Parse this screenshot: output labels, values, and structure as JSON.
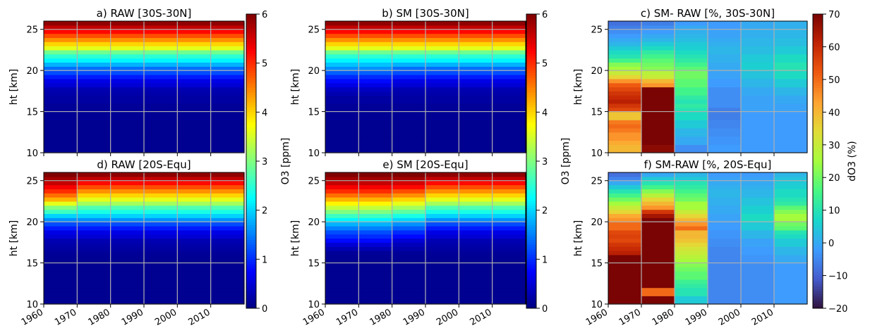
{
  "colors": {
    "grid": "#b0b0b0",
    "axis": "#000000"
  },
  "panels": [
    {
      "id": "a",
      "title": "a) RAW [30S-30N]",
      "ylabel": "ht [km]",
      "cmap": "jet",
      "vmin": 0,
      "vmax": 6,
      "xlim": [
        1960,
        2020
      ],
      "ylim": [
        10,
        26
      ],
      "xticks": [
        1960,
        1970,
        1980,
        1990,
        2000,
        2010
      ],
      "yticks": [
        10,
        15,
        20,
        25
      ],
      "xedges": [
        1960,
        1970,
        2020
      ],
      "columns": [
        [
          0.1,
          0.1,
          0.1,
          0.1,
          0.1,
          0.1,
          0.1,
          0.1,
          0.12,
          0.12,
          0.15,
          0.15,
          0.2,
          0.2,
          0.25,
          0.3,
          0.5,
          0.6,
          0.9,
          1.2,
          1.4,
          1.8,
          2.2,
          2.5,
          2.9,
          3.6,
          4.0,
          4.4,
          4.8,
          5.2,
          5.6,
          5.9
        ],
        [
          0.1,
          0.1,
          0.1,
          0.1,
          0.1,
          0.1,
          0.1,
          0.1,
          0.12,
          0.12,
          0.15,
          0.15,
          0.2,
          0.2,
          0.25,
          0.3,
          0.5,
          0.6,
          0.9,
          1.2,
          1.4,
          1.8,
          2.2,
          2.5,
          2.9,
          3.6,
          4.0,
          4.4,
          4.8,
          5.2,
          5.6,
          5.9
        ]
      ]
    },
    {
      "id": "b",
      "title": "b) SM [30S-30N]",
      "ylabel": "ht [km]",
      "cmap": "jet",
      "vmin": 0,
      "vmax": 6,
      "xlim": [
        1960,
        2020
      ],
      "ylim": [
        10,
        26
      ],
      "xticks": [
        1960,
        1970,
        1980,
        1990,
        2000,
        2010
      ],
      "yticks": [
        10,
        15,
        20,
        25
      ],
      "xedges": [
        1960,
        1970,
        1980,
        2020
      ],
      "columns": [
        [
          0.1,
          0.1,
          0.1,
          0.1,
          0.1,
          0.1,
          0.1,
          0.1,
          0.12,
          0.12,
          0.15,
          0.15,
          0.2,
          0.2,
          0.3,
          0.4,
          0.6,
          0.8,
          1.0,
          1.3,
          1.6,
          1.9,
          2.2,
          2.5,
          2.9,
          3.6,
          4.0,
          4.4,
          4.8,
          5.2,
          5.6,
          5.9
        ],
        [
          0.1,
          0.1,
          0.1,
          0.1,
          0.1,
          0.1,
          0.1,
          0.1,
          0.12,
          0.12,
          0.15,
          0.15,
          0.2,
          0.2,
          0.3,
          0.4,
          0.6,
          0.8,
          1.0,
          1.3,
          1.6,
          1.9,
          2.2,
          2.5,
          2.9,
          3.6,
          4.0,
          4.4,
          4.8,
          5.2,
          5.6,
          5.9
        ],
        [
          0.1,
          0.1,
          0.1,
          0.1,
          0.1,
          0.1,
          0.1,
          0.1,
          0.12,
          0.12,
          0.15,
          0.15,
          0.2,
          0.2,
          0.25,
          0.3,
          0.5,
          0.6,
          0.9,
          1.2,
          1.4,
          1.8,
          2.2,
          2.5,
          2.9,
          3.6,
          4.0,
          4.4,
          4.8,
          5.2,
          5.6,
          5.9
        ]
      ]
    },
    {
      "id": "c",
      "title": "c) SM- RAW [%, 30S-30N]",
      "ylabel": "ht [km]",
      "cmap": "turbo",
      "vmin": -20,
      "vmax": 70,
      "xlim": [
        1960,
        2020
      ],
      "ylim": [
        10,
        26
      ],
      "xticks": [
        1960,
        1970,
        1980,
        1990,
        2000,
        2010
      ],
      "yticks": [
        10,
        15,
        20,
        25
      ],
      "xedges": [
        1960,
        1970,
        1980,
        1990,
        2000,
        2010,
        2020
      ],
      "columns": [
        [
          40,
          40,
          42,
          45,
          45,
          48,
          50,
          48,
          38,
          38,
          55,
          58,
          62,
          60,
          58,
          55,
          52,
          45,
          35,
          30,
          25,
          22,
          15,
          10,
          8,
          5,
          2,
          0,
          -2,
          -4,
          -6,
          -8
        ],
        [
          68,
          68,
          70,
          70,
          70,
          70,
          70,
          70,
          70,
          70,
          70,
          70,
          70,
          70,
          70,
          70,
          45,
          40,
          30,
          28,
          22,
          20,
          18,
          15,
          12,
          8,
          5,
          2,
          0,
          -2,
          -4,
          -6
        ],
        [
          -4,
          -4,
          0,
          0,
          2,
          2,
          5,
          5,
          8,
          8,
          10,
          12,
          10,
          12,
          15,
          15,
          18,
          18,
          20,
          20,
          18,
          15,
          12,
          10,
          8,
          6,
          5,
          3,
          2,
          1,
          0,
          -2
        ],
        [
          -2,
          -2,
          -3,
          -3,
          -4,
          -4,
          -5,
          -5,
          -6,
          -6,
          -6,
          -4,
          -4,
          -4,
          -4,
          -4,
          -2,
          -2,
          -1,
          -1,
          0,
          0,
          1,
          1,
          2,
          2,
          1,
          0,
          -1,
          -1,
          -2,
          -2
        ],
        [
          -2,
          -2,
          -2,
          -2,
          -2,
          -2,
          -2,
          -2,
          -2,
          -2,
          -1,
          -1,
          -1,
          -1,
          0,
          0,
          2,
          2,
          4,
          4,
          6,
          6,
          5,
          5,
          3,
          3,
          2,
          2,
          1,
          1,
          0,
          0
        ],
        [
          -2,
          -2,
          -2,
          -2,
          -2,
          -2,
          -2,
          -2,
          -2,
          -2,
          -1,
          -1,
          0,
          0,
          2,
          2,
          5,
          5,
          8,
          8,
          10,
          10,
          8,
          8,
          5,
          5,
          3,
          3,
          2,
          2,
          1,
          1
        ]
      ]
    },
    {
      "id": "d",
      "title": "d) RAW [20S-Equ]",
      "ylabel": "ht [km]",
      "cmap": "jet",
      "vmin": 0,
      "vmax": 6,
      "xlim": [
        1960,
        2020
      ],
      "ylim": [
        10,
        26
      ],
      "xticks": [
        1960,
        1970,
        1980,
        1990,
        2000,
        2010
      ],
      "yticks": [
        10,
        15,
        20,
        25
      ],
      "xedges": [
        1960,
        1970,
        2020
      ],
      "columns": [
        [
          0.1,
          0.1,
          0.1,
          0.1,
          0.1,
          0.1,
          0.1,
          0.1,
          0.1,
          0.1,
          0.1,
          0.12,
          0.15,
          0.2,
          0.25,
          0.3,
          0.5,
          0.6,
          0.9,
          1.2,
          1.6,
          2.0,
          2.6,
          3.0,
          3.6,
          4.2,
          4.6,
          5.0,
          5.3,
          5.6,
          5.8,
          6.0
        ],
        [
          0.1,
          0.1,
          0.1,
          0.1,
          0.1,
          0.1,
          0.1,
          0.1,
          0.1,
          0.1,
          0.1,
          0.12,
          0.15,
          0.2,
          0.25,
          0.3,
          0.5,
          0.6,
          0.9,
          1.2,
          1.6,
          2.0,
          2.4,
          2.7,
          3.2,
          3.6,
          4.0,
          4.4,
          4.8,
          5.2,
          5.6,
          5.9
        ]
      ]
    },
    {
      "id": "e",
      "title": "e) SM [20S-Equ]",
      "ylabel": "ht [km]",
      "cmap": "jet",
      "vmin": 0,
      "vmax": 6,
      "xlim": [
        1960,
        2020
      ],
      "ylim": [
        10,
        26
      ],
      "xticks": [
        1960,
        1970,
        1980,
        1990,
        2000,
        2010
      ],
      "yticks": [
        10,
        15,
        20,
        25
      ],
      "xedges": [
        1960,
        1970,
        1980,
        1990,
        2020
      ],
      "columns": [
        [
          0.1,
          0.1,
          0.1,
          0.1,
          0.1,
          0.1,
          0.1,
          0.1,
          0.1,
          0.1,
          0.1,
          0.12,
          0.15,
          0.3,
          0.5,
          0.8,
          1.0,
          1.2,
          1.5,
          1.8,
          2.2,
          2.6,
          3.0,
          3.4,
          3.8,
          4.2,
          4.6,
          5.0,
          5.3,
          5.6,
          5.8,
          6.0
        ],
        [
          0.1,
          0.1,
          0.1,
          0.1,
          0.1,
          0.1,
          0.1,
          0.1,
          0.1,
          0.1,
          0.1,
          0.12,
          0.15,
          0.3,
          0.5,
          0.8,
          1.0,
          1.2,
          1.5,
          1.8,
          2.2,
          2.6,
          3.0,
          3.4,
          3.8,
          4.2,
          4.6,
          5.0,
          5.3,
          5.6,
          5.8,
          6.0
        ],
        [
          0.1,
          0.1,
          0.1,
          0.1,
          0.1,
          0.1,
          0.1,
          0.1,
          0.1,
          0.1,
          0.1,
          0.12,
          0.15,
          0.25,
          0.35,
          0.5,
          0.8,
          1.0,
          1.3,
          1.6,
          2.0,
          2.4,
          2.8,
          3.2,
          3.6,
          4.0,
          4.4,
          4.8,
          5.2,
          5.5,
          5.8,
          6.0
        ],
        [
          0.1,
          0.1,
          0.1,
          0.1,
          0.1,
          0.1,
          0.1,
          0.1,
          0.1,
          0.1,
          0.1,
          0.12,
          0.15,
          0.2,
          0.25,
          0.3,
          0.5,
          0.6,
          0.9,
          1.2,
          1.6,
          2.0,
          2.4,
          2.7,
          3.2,
          3.6,
          4.0,
          4.4,
          4.8,
          5.2,
          5.6,
          5.9
        ]
      ]
    },
    {
      "id": "f",
      "title": "f) SM-RAW [%, 20S-Equ]",
      "ylabel": "ht [km]",
      "cmap": "turbo",
      "vmin": -20,
      "vmax": 70,
      "xlim": [
        1960,
        2020
      ],
      "ylim": [
        10,
        26
      ],
      "xticks": [
        1960,
        1970,
        1980,
        1990,
        2000,
        2010
      ],
      "yticks": [
        10,
        15,
        20,
        25
      ],
      "xedges": [
        1960,
        1970,
        1980,
        1990,
        2000,
        2010,
        2020
      ],
      "columns": [
        [
          70,
          70,
          70,
          70,
          70,
          70,
          70,
          70,
          70,
          70,
          70,
          70,
          62,
          60,
          58,
          55,
          56,
          55,
          50,
          50,
          45,
          42,
          35,
          30,
          25,
          20,
          15,
          10,
          5,
          0,
          -5,
          -8
        ],
        [
          70,
          70,
          50,
          50,
          70,
          70,
          70,
          70,
          70,
          70,
          70,
          70,
          70,
          70,
          70,
          70,
          70,
          70,
          70,
          70,
          70,
          65,
          58,
          45,
          40,
          35,
          28,
          22,
          15,
          10,
          5,
          0
        ],
        [
          5,
          5,
          10,
          10,
          12,
          14,
          18,
          18,
          20,
          22,
          25,
          28,
          30,
          32,
          35,
          38,
          40,
          40,
          50,
          45,
          40,
          35,
          30,
          25,
          25,
          20,
          18,
          15,
          12,
          10,
          5,
          2
        ],
        [
          -5,
          -5,
          -5,
          -5,
          -5,
          -5,
          -5,
          -5,
          -5,
          -5,
          -5,
          -5,
          -5,
          -5,
          -4,
          -4,
          -3,
          -3,
          -2,
          -2,
          -1,
          -1,
          0,
          0,
          1,
          1,
          2,
          2,
          1,
          0,
          -1,
          -2
        ],
        [
          -4,
          -4,
          -4,
          -4,
          -4,
          -4,
          -4,
          -4,
          -4,
          -4,
          -3,
          -3,
          -2,
          -2,
          -1,
          -1,
          2,
          2,
          5,
          5,
          8,
          8,
          6,
          6,
          4,
          4,
          2,
          2,
          1,
          0,
          -1,
          -2
        ],
        [
          -2,
          -2,
          -2,
          -2,
          -2,
          -2,
          -2,
          -2,
          -2,
          -2,
          0,
          0,
          2,
          2,
          5,
          5,
          8,
          10,
          18,
          20,
          25,
          25,
          22,
          18,
          12,
          10,
          8,
          8,
          6,
          5,
          4,
          2
        ]
      ]
    }
  ],
  "colorbars": [
    {
      "id": "cb1",
      "cmap": "jet",
      "label": "O3 [ppm]",
      "vmin": 0,
      "vmax": 6,
      "ticks": [
        0,
        1,
        2,
        3,
        4,
        5,
        6
      ]
    },
    {
      "id": "cb2",
      "cmap": "turbo",
      "label": "dO3 (%)",
      "vmin": -20,
      "vmax": 70,
      "ticks": [
        -20,
        -10,
        0,
        10,
        20,
        30,
        40,
        50,
        60,
        70
      ]
    }
  ],
  "chart_data": [
    {
      "type": "heatmap",
      "title": "a) RAW [30S-30N]",
      "ylabel": "ht [km]",
      "xlim": [
        1960,
        2020
      ],
      "ylim": [
        10,
        26
      ],
      "colorbar": "O3 [ppm]"
    },
    {
      "type": "heatmap",
      "title": "b) SM [30S-30N]",
      "ylabel": "ht [km]",
      "xlim": [
        1960,
        2020
      ],
      "ylim": [
        10,
        26
      ],
      "colorbar": "O3 [ppm]"
    },
    {
      "type": "heatmap",
      "title": "c) SM- RAW [%, 30S-30N]",
      "ylabel": "ht [km]",
      "xlim": [
        1960,
        2020
      ],
      "ylim": [
        10,
        26
      ],
      "colorbar": "dO3 (%)"
    },
    {
      "type": "heatmap",
      "title": "d) RAW [20S-Equ]",
      "ylabel": "ht [km]",
      "xlim": [
        1960,
        2020
      ],
      "ylim": [
        10,
        26
      ],
      "colorbar": "O3 [ppm]"
    },
    {
      "type": "heatmap",
      "title": "e) SM [20S-Equ]",
      "ylabel": "ht [km]",
      "xlim": [
        1960,
        2020
      ],
      "ylim": [
        10,
        26
      ],
      "colorbar": "O3 [ppm]"
    },
    {
      "type": "heatmap",
      "title": "f) SM-RAW [%, 20S-Equ]",
      "ylabel": "ht [km]",
      "xlim": [
        1960,
        2020
      ],
      "ylim": [
        10,
        26
      ],
      "colorbar": "dO3 (%)"
    }
  ]
}
